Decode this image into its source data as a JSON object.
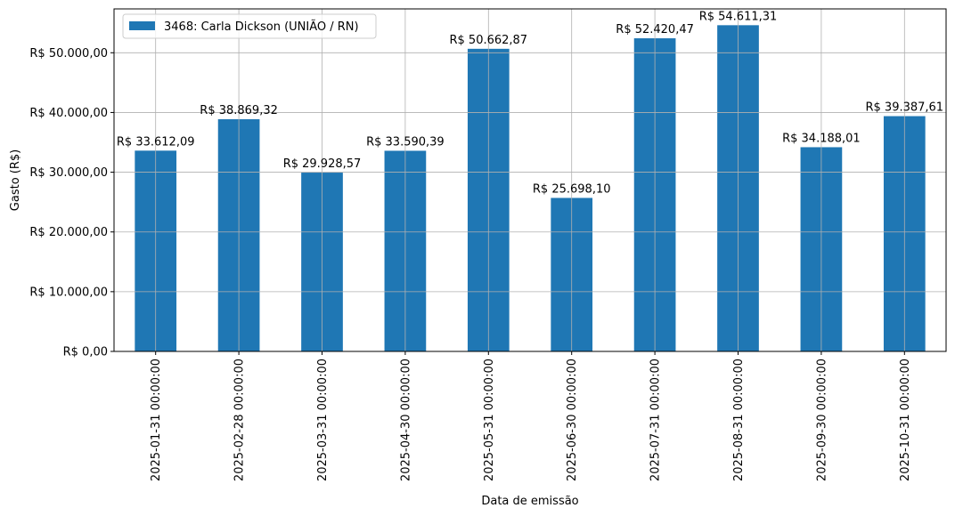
{
  "chart_data": {
    "type": "bar",
    "categories": [
      "2025-01-31 00:00:00",
      "2025-02-28 00:00:00",
      "2025-03-31 00:00:00",
      "2025-04-30 00:00:00",
      "2025-05-31 00:00:00",
      "2025-06-30 00:00:00",
      "2025-07-31 00:00:00",
      "2025-08-31 00:00:00",
      "2025-09-30 00:00:00",
      "2025-10-31 00:00:00"
    ],
    "series": [
      {
        "name": "3468: Carla Dickson (UNIÃO / RN)",
        "color": "#1f77b4",
        "values": [
          33612.09,
          38869.32,
          29928.57,
          33590.39,
          50662.87,
          25698.1,
          52420.47,
          54611.31,
          34188.01,
          39387.61
        ],
        "labels": [
          "R$ 33.612,09",
          "R$ 38.869,32",
          "R$ 29.928,57",
          "R$ 33.590,39",
          "R$ 50.662,87",
          "R$ 25.698,10",
          "R$ 52.420,47",
          "R$ 54.611,31",
          "R$ 34.188,01",
          "R$ 39.387,61"
        ]
      }
    ],
    "xlabel": "Data de emissão",
    "ylabel": "Gasto (R$)",
    "ylim": [
      0,
      57342
    ],
    "yticks": [
      0,
      10000,
      20000,
      30000,
      40000,
      50000
    ],
    "ytick_labels": [
      "R$ 0,00",
      "R$ 10.000,00",
      "R$ 20.000,00",
      "R$ 30.000,00",
      "R$ 40.000,00",
      "R$ 50.000,00"
    ],
    "grid": true,
    "legend_position": "top-left",
    "x_tick_rotation": "vertical"
  }
}
